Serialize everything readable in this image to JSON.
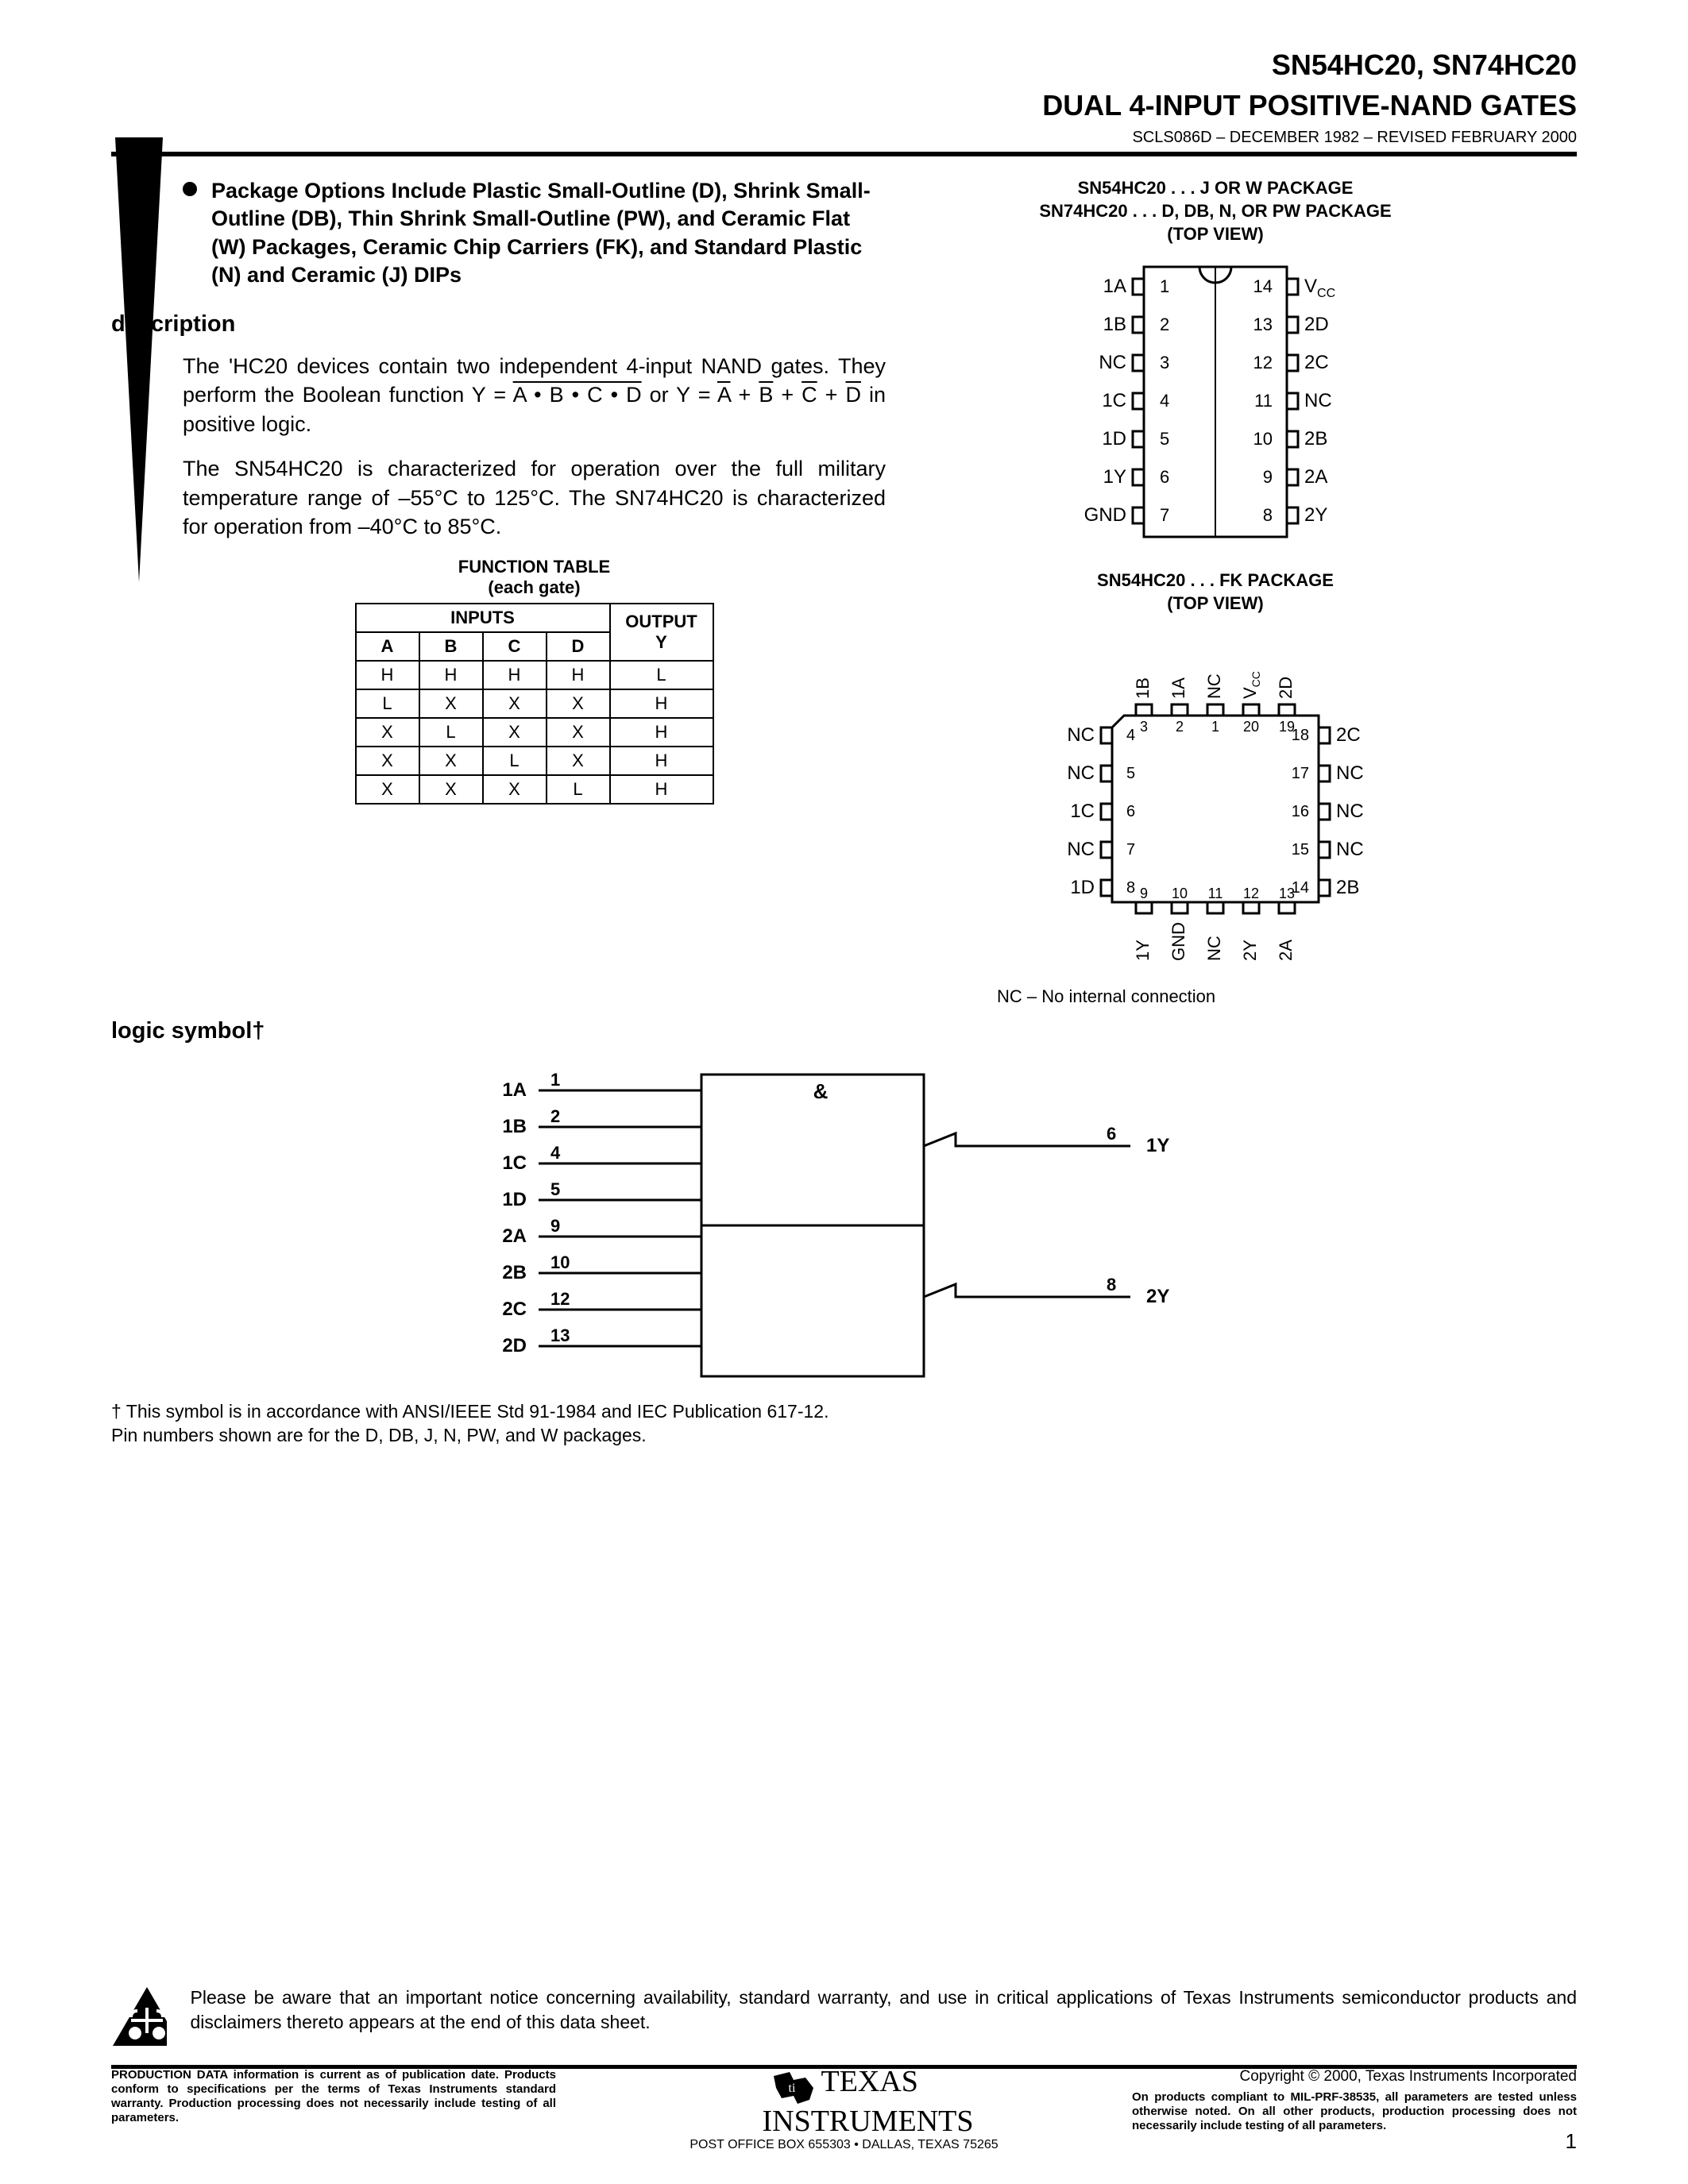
{
  "header": {
    "part": "SN54HC20, SN74HC20",
    "title": "DUAL 4-INPUT POSITIVE-NAND GATES",
    "revision": "SCLS086D – DECEMBER 1982 – REVISED FEBRUARY 2000"
  },
  "feature_bullet": "Package Options Include Plastic Small-Outline (D), Shrink Small-Outline (DB), Thin Shrink Small-Outline (PW), and Ceramic Flat (W) Packages, Ceramic Chip Carriers (FK), and Standard Plastic (N) and Ceramic (J) DIPs",
  "sections": {
    "description_head": "description",
    "logic_head": "logic symbol†"
  },
  "description": {
    "p1a": "The 'HC20 devices contain two independent 4-input NAND gates. They perform the Boolean function Y = ",
    "p1_abcd": "A • B • C • D",
    "p1b": " or Y = ",
    "p1c": " in positive logic.",
    "p2": "The SN54HC20 is characterized for operation over the full military temperature range of –55°C to 125°C. The SN74HC20 is characterized for operation from –40°C to 85°C."
  },
  "function_table": {
    "caption1": "FUNCTION TABLE",
    "caption2": "(each gate)",
    "inputs_label": "INPUTS",
    "output_label": "OUTPUT",
    "cols": [
      "A",
      "B",
      "C",
      "D",
      "Y"
    ],
    "rows": [
      [
        "H",
        "H",
        "H",
        "H",
        "L"
      ],
      [
        "L",
        "X",
        "X",
        "X",
        "H"
      ],
      [
        "X",
        "L",
        "X",
        "X",
        "H"
      ],
      [
        "X",
        "X",
        "L",
        "X",
        "H"
      ],
      [
        "X",
        "X",
        "X",
        "L",
        "H"
      ]
    ]
  },
  "packages": {
    "dip_title1": "SN54HC20 . . . J OR W PACKAGE",
    "dip_title2": "SN74HC20 . . . D, DB, N, OR PW PACKAGE",
    "dip_topview": "(TOP VIEW)",
    "dip_left": [
      "1A",
      "1B",
      "NC",
      "1C",
      "1D",
      "1Y",
      "GND"
    ],
    "dip_right": [
      "V",
      "2D",
      "2C",
      "NC",
      "2B",
      "2A",
      "2Y"
    ],
    "dip_right_sub": "CC",
    "dip_nums_left": [
      "1",
      "2",
      "3",
      "4",
      "5",
      "6",
      "7"
    ],
    "dip_nums_right": [
      "14",
      "13",
      "12",
      "11",
      "10",
      "9",
      "8"
    ],
    "fk_title": "SN54HC20 . . . FK PACKAGE",
    "fk_topview": "(TOP VIEW)",
    "fk_top": [
      "1B",
      "1A",
      "NC",
      "V",
      "2D"
    ],
    "fk_top_sub": "CC",
    "fk_top_nums": [
      "3",
      "2",
      "1",
      "20",
      "19"
    ],
    "fk_left": [
      "NC",
      "NC",
      "1C",
      "NC",
      "1D"
    ],
    "fk_left_nums": [
      "4",
      "5",
      "6",
      "7",
      "8"
    ],
    "fk_right": [
      "2C",
      "NC",
      "NC",
      "NC",
      "2B"
    ],
    "fk_right_nums": [
      "18",
      "17",
      "16",
      "15",
      "14"
    ],
    "fk_bottom": [
      "1Y",
      "GND",
      "NC",
      "2Y",
      "2A"
    ],
    "fk_bottom_nums": [
      "9",
      "10",
      "11",
      "12",
      "13"
    ],
    "nc_note": "NC – No internal connection"
  },
  "logic_symbol": {
    "inputs": [
      {
        "label": "1A",
        "pin": "1"
      },
      {
        "label": "1B",
        "pin": "2"
      },
      {
        "label": "1C",
        "pin": "4"
      },
      {
        "label": "1D",
        "pin": "5"
      },
      {
        "label": "2A",
        "pin": "9"
      },
      {
        "label": "2B",
        "pin": "10"
      },
      {
        "label": "2C",
        "pin": "12"
      },
      {
        "label": "2D",
        "pin": "13"
      }
    ],
    "outputs": [
      {
        "label": "1Y",
        "pin": "6"
      },
      {
        "label": "2Y",
        "pin": "8"
      }
    ],
    "amp": "&"
  },
  "logic_footnote": "† This symbol is in accordance with ANSI/IEEE Std 91-1984 and IEC Publication 617-12.\nPin numbers shown are for the D, DB, J, N, PW, and W packages.",
  "notice": "Please be aware that an important notice concerning availability, standard warranty, and use in critical applications of Texas Instruments semiconductor products and disclaimers thereto appears at the end of this data sheet.",
  "footer": {
    "prod_data": "PRODUCTION DATA information is current as of publication date. Products conform to specifications per the terms of Texas Instruments standard warranty. Production processing does not necessarily include testing of all parameters.",
    "copyright": "Copyright © 2000, Texas Instruments Incorporated",
    "compliance": "On products compliant to MIL-PRF-38535, all parameters are tested unless otherwise noted. On all other products, production processing does not necessarily include testing of all parameters.",
    "ti_name1": "TEXAS",
    "ti_name2": "INSTRUMENTS",
    "address": "POST OFFICE BOX 655303 • DALLAS, TEXAS 75265",
    "page": "1"
  },
  "style": {
    "border_color": "#000000",
    "bg_color": "#ffffff"
  }
}
